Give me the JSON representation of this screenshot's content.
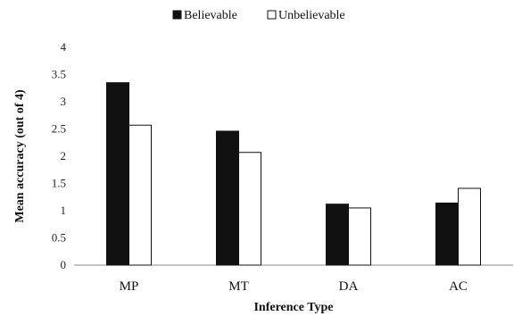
{
  "chart_data": {
    "type": "bar",
    "categories": [
      "MP",
      "MT",
      "DA",
      "AC"
    ],
    "series": [
      {
        "name": "Believable",
        "values": [
          3.35,
          2.46,
          1.12,
          1.14
        ],
        "color": "#111111"
      },
      {
        "name": "Unbelievable",
        "values": [
          2.57,
          2.07,
          1.05,
          1.41
        ],
        "color": "#ffffff"
      }
    ],
    "xlabel": "Inference Type",
    "ylabel": "Mean accuracy (out of 4)",
    "ylim": [
      0,
      4
    ],
    "yticks": [
      "0",
      "0.5",
      "1",
      "1.5",
      "2",
      "2.5",
      "3",
      "3.5",
      "4"
    ],
    "grid": false,
    "legend_position": "top-center"
  }
}
